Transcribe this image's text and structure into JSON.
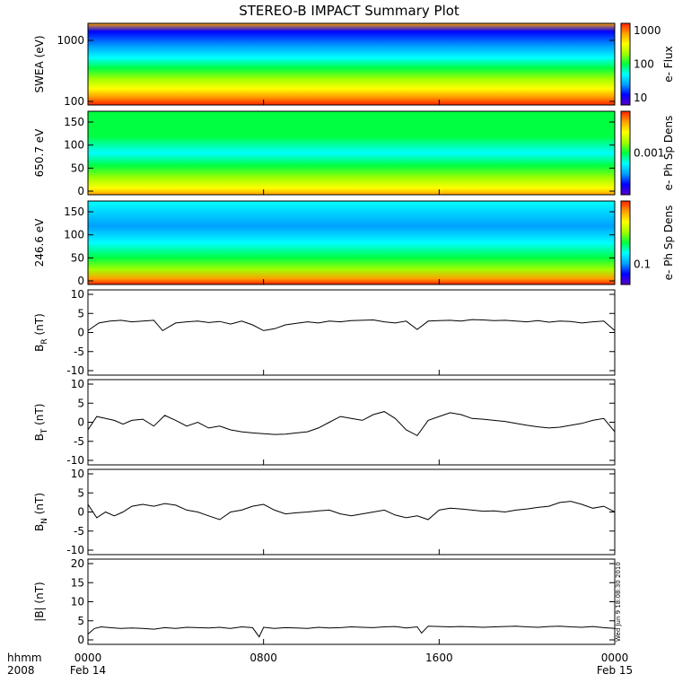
{
  "page_title": "STEREO-B IMPACT Summary Plot",
  "stamp": "Wed Jun  9 18:08:30 2010",
  "time_axis": {
    "corner_labels": [
      "hhmm",
      "2008"
    ],
    "ticks": [
      {
        "hours": 0,
        "label": "0000",
        "sub": "Feb 14"
      },
      {
        "hours": 8,
        "label": "0800",
        "sub": ""
      },
      {
        "hours": 16,
        "label": "1600",
        "sub": ""
      },
      {
        "hours": 24,
        "label": "0000",
        "sub": "Feb 15"
      }
    ]
  },
  "colors": {
    "spectrogram_scale": [
      "#5a00c8",
      "#0000ff",
      "#00a0ff",
      "#00ffff",
      "#00ff40",
      "#a0ff00",
      "#ffff00",
      "#ffa000",
      "#ff2000"
    ]
  },
  "spectrograms": [
    {
      "ylabel": "SWEA (eV)",
      "yscale": "log",
      "yticks": [
        "1000",
        "100"
      ],
      "colorbar_label": "e- Flux",
      "colorbar_ticks": [
        "1000",
        "100",
        "10"
      ]
    },
    {
      "ylabel": "650.7 eV",
      "yscale": "linear",
      "yticks": [
        "150",
        "100",
        "50",
        "0"
      ],
      "colorbar_label": "e- Ph Sp Dens",
      "colorbar_ticks": [
        "0.001"
      ]
    },
    {
      "ylabel": "246.6 eV",
      "yscale": "linear",
      "yticks": [
        "150",
        "100",
        "50",
        "0"
      ],
      "colorbar_label": "e- Ph Sp Dens",
      "colorbar_ticks": [
        "0.1"
      ]
    }
  ],
  "chart_data": [
    {
      "type": "line",
      "ylabel_main": "B",
      "ylabel_sub": "R",
      "ylabel_unit": "(nT)",
      "ylim": [
        -10,
        10
      ],
      "yticks": [
        "10",
        "5",
        "0",
        "-5",
        "-10"
      ],
      "x": [
        0,
        0.5,
        1,
        1.5,
        2,
        2.5,
        3,
        3.4,
        3.7,
        4,
        4.5,
        5,
        5.5,
        6,
        6.5,
        7,
        7.5,
        8,
        8.5,
        9,
        9.5,
        10,
        10.5,
        11,
        11.5,
        12,
        12.5,
        13,
        13.5,
        14,
        14.5,
        15,
        15.5,
        16,
        16.5,
        17,
        17.5,
        18,
        18.5,
        19,
        19.5,
        20,
        20.5,
        21,
        21.5,
        22,
        22.5,
        23,
        23.5,
        24
      ],
      "values": [
        0.5,
        2.5,
        3,
        3.2,
        2.8,
        3.0,
        3.2,
        0.5,
        1.5,
        2.5,
        2.8,
        3.0,
        2.6,
        2.9,
        2.2,
        3.0,
        2.0,
        0.5,
        1.0,
        2.0,
        2.4,
        2.8,
        2.5,
        3.0,
        2.8,
        3.1,
        3.2,
        3.3,
        2.8,
        2.5,
        3.0,
        0.8,
        3.0,
        3.1,
        3.2,
        3.0,
        3.4,
        3.3,
        3.1,
        3.2,
        3.0,
        2.8,
        3.1,
        2.7,
        3.0,
        2.9,
        2.5,
        2.8,
        3.0,
        0.5
      ]
    },
    {
      "type": "line",
      "ylabel_main": "B",
      "ylabel_sub": "T",
      "ylabel_unit": "(nT)",
      "ylim": [
        -10,
        10
      ],
      "yticks": [
        "10",
        "5",
        "0",
        "-5",
        "-10"
      ],
      "x": [
        0,
        0.4,
        0.8,
        1.2,
        1.6,
        2,
        2.5,
        3,
        3.5,
        4,
        4.5,
        5,
        5.5,
        6,
        6.5,
        7,
        7.5,
        8,
        8.5,
        9,
        9.5,
        10,
        10.5,
        11,
        11.5,
        12,
        12.5,
        13,
        13.5,
        14,
        14.5,
        15,
        15.5,
        16,
        16.5,
        17,
        17.5,
        18,
        18.5,
        19,
        19.5,
        20,
        20.5,
        21,
        21.5,
        22,
        22.5,
        23,
        23.5,
        24
      ],
      "values": [
        -2.0,
        1.5,
        1.0,
        0.5,
        -0.5,
        0.5,
        0.8,
        -1.0,
        1.8,
        0.5,
        -1.0,
        0.0,
        -1.5,
        -1.0,
        -2.0,
        -2.5,
        -2.8,
        -3.0,
        -3.2,
        -3.1,
        -2.8,
        -2.5,
        -1.5,
        0.0,
        1.5,
        1.0,
        0.5,
        2.0,
        2.8,
        1.0,
        -2.0,
        -3.5,
        0.5,
        1.5,
        2.5,
        2.0,
        1.0,
        0.8,
        0.5,
        0.2,
        -0.3,
        -0.8,
        -1.2,
        -1.5,
        -1.3,
        -0.8,
        -0.3,
        0.5,
        1.0,
        -2.5
      ]
    },
    {
      "type": "line",
      "ylabel_main": "B",
      "ylabel_sub": "N",
      "ylabel_unit": "(nT)",
      "ylim": [
        -10,
        10
      ],
      "yticks": [
        "10",
        "5",
        "0",
        "-5",
        "-10"
      ],
      "x": [
        0,
        0.4,
        0.8,
        1.2,
        1.6,
        2,
        2.5,
        3,
        3.5,
        4,
        4.5,
        5,
        5.5,
        6,
        6.5,
        7,
        7.5,
        8,
        8.5,
        9,
        9.5,
        10,
        10.5,
        11,
        11.5,
        12,
        12.5,
        13,
        13.5,
        14,
        14.5,
        15,
        15.5,
        16,
        16.5,
        17,
        17.5,
        18,
        18.5,
        19,
        19.5,
        20,
        20.5,
        21,
        21.5,
        22,
        22.5,
        23,
        23.5,
        24
      ],
      "values": [
        2.0,
        -1.5,
        0.0,
        -1.0,
        0.0,
        1.5,
        2.0,
        1.5,
        2.2,
        1.8,
        0.5,
        0.0,
        -1.0,
        -2.0,
        0.0,
        0.5,
        1.5,
        2.0,
        0.5,
        -0.5,
        -0.2,
        0.0,
        0.3,
        0.5,
        -0.5,
        -1.0,
        -0.5,
        0.0,
        0.5,
        -0.8,
        -1.5,
        -1.0,
        -2.0,
        0.5,
        1.0,
        0.8,
        0.5,
        0.2,
        0.3,
        0.0,
        0.5,
        0.8,
        1.2,
        1.5,
        2.5,
        2.8,
        2.0,
        1.0,
        1.5,
        0.0
      ]
    },
    {
      "type": "line",
      "ylabel_main": "|B|",
      "ylabel_sub": "",
      "ylabel_unit": "(nT)",
      "ylim": [
        0,
        20
      ],
      "yticks": [
        "20",
        "15",
        "10",
        "5",
        "0"
      ],
      "x": [
        0,
        0.3,
        0.6,
        1,
        1.5,
        2,
        2.5,
        3,
        3.5,
        4,
        4.5,
        5,
        5.5,
        6,
        6.5,
        7,
        7.5,
        7.8,
        8,
        8.5,
        9,
        9.5,
        10,
        10.5,
        11,
        11.5,
        12,
        12.5,
        13,
        13.5,
        14,
        14.5,
        15,
        15.2,
        15.5,
        16,
        16.5,
        17,
        17.5,
        18,
        18.5,
        19,
        19.5,
        20,
        20.5,
        21,
        21.5,
        22,
        22.5,
        23,
        23.5,
        24
      ],
      "values": [
        1.5,
        3.0,
        3.4,
        3.2,
        3.0,
        3.1,
        3.0,
        2.8,
        3.2,
        3.0,
        3.3,
        3.2,
        3.1,
        3.3,
        3.0,
        3.4,
        3.2,
        0.8,
        3.3,
        3.0,
        3.2,
        3.1,
        3.0,
        3.3,
        3.1,
        3.2,
        3.4,
        3.3,
        3.2,
        3.4,
        3.5,
        3.1,
        3.4,
        1.8,
        3.6,
        3.5,
        3.4,
        3.5,
        3.4,
        3.3,
        3.4,
        3.5,
        3.6,
        3.4,
        3.3,
        3.5,
        3.6,
        3.4,
        3.3,
        3.5,
        3.2,
        3.0
      ]
    }
  ]
}
